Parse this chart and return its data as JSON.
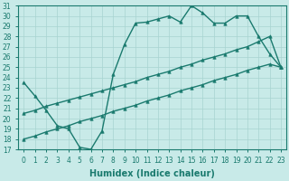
{
  "line1_x": [
    0,
    1,
    2,
    3,
    4,
    5,
    6,
    7,
    8,
    9,
    10,
    11,
    12,
    13,
    14,
    15,
    16,
    17,
    18,
    19,
    20,
    21,
    22,
    23
  ],
  "line1_y": [
    23.5,
    22.2,
    20.8,
    19.3,
    19.0,
    17.2,
    17.0,
    18.8,
    24.3,
    27.2,
    29.3,
    29.4,
    29.7,
    30.0,
    29.4,
    31.0,
    30.3,
    29.3,
    29.3,
    30.0,
    30.0,
    28.0,
    26.3,
    25.0
  ],
  "line2_x": [
    0,
    1,
    2,
    3,
    4,
    5,
    6,
    7,
    8,
    9,
    10,
    11,
    12,
    13,
    14,
    15,
    16,
    17,
    18,
    19,
    20,
    21,
    22,
    23
  ],
  "line2_y": [
    20.5,
    20.8,
    21.2,
    21.5,
    21.8,
    22.1,
    22.4,
    22.7,
    23.0,
    23.3,
    23.6,
    24.0,
    24.3,
    24.6,
    25.0,
    25.3,
    25.7,
    26.0,
    26.3,
    26.7,
    27.0,
    27.5,
    28.0,
    25.0
  ],
  "line3_x": [
    0,
    1,
    2,
    3,
    4,
    5,
    6,
    7,
    8,
    9,
    10,
    11,
    12,
    13,
    14,
    15,
    16,
    17,
    18,
    19,
    20,
    21,
    22,
    23
  ],
  "line3_y": [
    18.0,
    18.3,
    18.7,
    19.0,
    19.3,
    19.7,
    20.0,
    20.3,
    20.7,
    21.0,
    21.3,
    21.7,
    22.0,
    22.3,
    22.7,
    23.0,
    23.3,
    23.7,
    24.0,
    24.3,
    24.7,
    25.0,
    25.3,
    25.0
  ],
  "color": "#1a7a6e",
  "bg_color": "#c8eae8",
  "grid_color": "#a8d4d0",
  "xlabel": "Humidex (Indice chaleur)",
  "ylim": [
    17,
    31
  ],
  "xlim": [
    -0.5,
    23.5
  ],
  "yticks": [
    17,
    18,
    19,
    20,
    21,
    22,
    23,
    24,
    25,
    26,
    27,
    28,
    29,
    30,
    31
  ],
  "xticks": [
    0,
    1,
    2,
    3,
    4,
    5,
    6,
    7,
    8,
    9,
    10,
    11,
    12,
    13,
    14,
    15,
    16,
    17,
    18,
    19,
    20,
    21,
    22,
    23
  ],
  "marker": "^",
  "markersize": 2.5,
  "linewidth": 1.0,
  "xlabel_fontsize": 7,
  "tick_fontsize": 5.5
}
